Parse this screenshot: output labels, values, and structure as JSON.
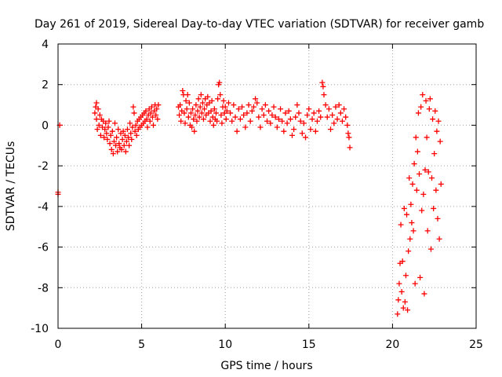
{
  "chart_data": {
    "type": "scatter",
    "title": "Day 261 of 2019, Sidereal Day-to-day VTEC variation (SDTVAR) for receiver gamb",
    "xlabel": "GPS time / hours",
    "ylabel": "SDTVAR / TECUs",
    "xlim": [
      0,
      25
    ],
    "ylim": [
      -10,
      4
    ],
    "xticks": [
      0,
      5,
      10,
      15,
      20,
      25
    ],
    "yticks": [
      -10,
      -8,
      -6,
      -4,
      -2,
      0,
      2,
      4
    ],
    "xtick_labels": [
      "0",
      "5",
      "10",
      "15",
      "20",
      "25"
    ],
    "ytick_labels": [
      "-10",
      "-8",
      "-6",
      "-4",
      "-2",
      "0",
      "2",
      "4"
    ],
    "grid": true,
    "marker": "plus",
    "series": [
      {
        "name": "SDTVAR",
        "color": "#ff0000",
        "points": [
          [
            0.0,
            -3.3
          ],
          [
            0.0,
            -3.4
          ],
          [
            0.1,
            0.0
          ],
          [
            2.2,
            0.6
          ],
          [
            2.25,
            0.9
          ],
          [
            2.3,
            1.1
          ],
          [
            2.3,
            0.3
          ],
          [
            2.35,
            -0.2
          ],
          [
            2.4,
            0.8
          ],
          [
            2.45,
            0.0
          ],
          [
            2.5,
            0.5
          ],
          [
            2.55,
            -0.5
          ],
          [
            2.6,
            0.3
          ],
          [
            2.65,
            -0.1
          ],
          [
            2.7,
            0.2
          ],
          [
            2.75,
            -0.6
          ],
          [
            2.8,
            -0.2
          ],
          [
            2.85,
            0.1
          ],
          [
            2.9,
            -0.4
          ],
          [
            2.95,
            -0.7
          ],
          [
            3.0,
            -0.1
          ],
          [
            3.05,
            0.2
          ],
          [
            3.1,
            -0.9
          ],
          [
            3.15,
            -0.5
          ],
          [
            3.2,
            -1.2
          ],
          [
            3.25,
            -0.3
          ],
          [
            3.3,
            -1.4
          ],
          [
            3.35,
            -0.8
          ],
          [
            3.4,
            0.1
          ],
          [
            3.45,
            -1.0
          ],
          [
            3.5,
            -0.6
          ],
          [
            3.55,
            -1.3
          ],
          [
            3.6,
            -0.2
          ],
          [
            3.65,
            -0.9
          ],
          [
            3.7,
            -1.1
          ],
          [
            3.75,
            -0.4
          ],
          [
            3.8,
            -1.2
          ],
          [
            3.85,
            -0.7
          ],
          [
            3.9,
            -0.3
          ],
          [
            3.95,
            -1.0
          ],
          [
            4.0,
            -0.5
          ],
          [
            4.05,
            -1.3
          ],
          [
            4.1,
            -0.8
          ],
          [
            4.15,
            -0.2
          ],
          [
            4.2,
            -0.6
          ],
          [
            4.25,
            -1.0
          ],
          [
            4.3,
            0.1
          ],
          [
            4.35,
            -0.4
          ],
          [
            4.4,
            -0.7
          ],
          [
            4.45,
            -0.1
          ],
          [
            4.5,
            0.9
          ],
          [
            4.55,
            0.6
          ],
          [
            4.6,
            -0.3
          ],
          [
            4.65,
            0.0
          ],
          [
            4.7,
            -0.5
          ],
          [
            4.75,
            0.2
          ],
          [
            4.8,
            -0.2
          ],
          [
            4.85,
            0.3
          ],
          [
            4.9,
            -0.1
          ],
          [
            4.95,
            0.4
          ],
          [
            5.0,
            0.0
          ],
          [
            5.05,
            0.5
          ],
          [
            5.1,
            0.1
          ],
          [
            5.15,
            0.6
          ],
          [
            5.2,
            0.2
          ],
          [
            5.25,
            0.7
          ],
          [
            5.3,
            0.3
          ],
          [
            5.35,
            -0.1
          ],
          [
            5.4,
            0.5
          ],
          [
            5.45,
            0.8
          ],
          [
            5.5,
            0.2
          ],
          [
            5.55,
            0.6
          ],
          [
            5.6,
            0.9
          ],
          [
            5.65,
            0.4
          ],
          [
            5.7,
            0.0
          ],
          [
            5.75,
            0.7
          ],
          [
            5.8,
            1.0
          ],
          [
            5.85,
            0.5
          ],
          [
            5.9,
            0.8
          ],
          [
            5.95,
            0.3
          ],
          [
            6.0,
            1.0
          ],
          [
            7.2,
            0.9
          ],
          [
            7.25,
            0.5
          ],
          [
            7.3,
            1.0
          ],
          [
            7.35,
            0.2
          ],
          [
            7.4,
            0.7
          ],
          [
            7.45,
            1.7
          ],
          [
            7.5,
            1.5
          ],
          [
            7.55,
            0.6
          ],
          [
            7.6,
            0.1
          ],
          [
            7.65,
            1.2
          ],
          [
            7.7,
            0.8
          ],
          [
            7.75,
            1.5
          ],
          [
            7.8,
            0.4
          ],
          [
            7.85,
            1.1
          ],
          [
            7.9,
            0.0
          ],
          [
            7.95,
            0.6
          ],
          [
            8.0,
            -0.1
          ],
          [
            8.05,
            0.8
          ],
          [
            8.1,
            0.3
          ],
          [
            8.15,
            -0.3
          ],
          [
            8.2,
            0.5
          ],
          [
            8.25,
            1.0
          ],
          [
            8.3,
            0.2
          ],
          [
            8.35,
            0.7
          ],
          [
            8.4,
            1.3
          ],
          [
            8.45,
            0.4
          ],
          [
            8.5,
            0.9
          ],
          [
            8.55,
            1.5
          ],
          [
            8.6,
            0.6
          ],
          [
            8.65,
            1.1
          ],
          [
            8.7,
            0.3
          ],
          [
            8.75,
            0.8
          ],
          [
            8.8,
            1.3
          ],
          [
            8.85,
            0.5
          ],
          [
            8.9,
            1.0
          ],
          [
            8.95,
            1.4
          ],
          [
            9.0,
            0.6
          ],
          [
            9.05,
            1.1
          ],
          [
            9.1,
            0.2
          ],
          [
            9.15,
            0.7
          ],
          [
            9.2,
            1.2
          ],
          [
            9.25,
            0.4
          ],
          [
            9.3,
            0.0
          ],
          [
            9.35,
            0.8
          ],
          [
            9.4,
            0.3
          ],
          [
            9.45,
            0.6
          ],
          [
            9.5,
            0.2
          ],
          [
            9.55,
            1.3
          ],
          [
            9.6,
            2.0
          ],
          [
            9.65,
            2.1
          ],
          [
            9.7,
            1.5
          ],
          [
            9.75,
            0.5
          ],
          [
            9.8,
            0.1
          ],
          [
            9.85,
            0.9
          ],
          [
            9.9,
            1.2
          ],
          [
            9.95,
            0.6
          ],
          [
            10.0,
            0.9
          ],
          [
            10.05,
            0.3
          ],
          [
            10.1,
            0.7
          ],
          [
            10.2,
            1.1
          ],
          [
            10.3,
            0.6
          ],
          [
            10.4,
            0.2
          ],
          [
            10.5,
            1.0
          ],
          [
            10.6,
            0.4
          ],
          [
            10.7,
            -0.3
          ],
          [
            10.8,
            0.8
          ],
          [
            10.9,
            0.3
          ],
          [
            11.0,
            0.9
          ],
          [
            11.1,
            0.5
          ],
          [
            11.2,
            -0.1
          ],
          [
            11.3,
            0.6
          ],
          [
            11.4,
            1.0
          ],
          [
            11.5,
            0.2
          ],
          [
            11.6,
            0.7
          ],
          [
            11.7,
            0.9
          ],
          [
            11.8,
            1.3
          ],
          [
            11.9,
            1.1
          ],
          [
            12.0,
            0.4
          ],
          [
            12.1,
            -0.1
          ],
          [
            12.2,
            0.8
          ],
          [
            12.3,
            0.5
          ],
          [
            12.4,
            1.0
          ],
          [
            12.5,
            0.2
          ],
          [
            12.6,
            0.7
          ],
          [
            12.7,
            0.1
          ],
          [
            12.8,
            0.5
          ],
          [
            12.9,
            0.9
          ],
          [
            13.0,
            0.4
          ],
          [
            13.1,
            -0.1
          ],
          [
            13.2,
            0.3
          ],
          [
            13.3,
            0.8
          ],
          [
            13.4,
            0.2
          ],
          [
            13.5,
            -0.3
          ],
          [
            13.6,
            0.6
          ],
          [
            13.7,
            0.1
          ],
          [
            13.8,
            0.7
          ],
          [
            13.9,
            0.3
          ],
          [
            14.0,
            -0.5
          ],
          [
            14.1,
            -0.2
          ],
          [
            14.2,
            0.4
          ],
          [
            14.3,
            1.0
          ],
          [
            14.4,
            0.6
          ],
          [
            14.5,
            0.2
          ],
          [
            14.6,
            -0.4
          ],
          [
            14.7,
            0.1
          ],
          [
            14.8,
            -0.6
          ],
          [
            14.9,
            0.5
          ],
          [
            15.0,
            0.8
          ],
          [
            15.1,
            -0.2
          ],
          [
            15.2,
            0.3
          ],
          [
            15.3,
            0.6
          ],
          [
            15.4,
            -0.3
          ],
          [
            15.5,
            0.2
          ],
          [
            15.6,
            0.7
          ],
          [
            15.7,
            0.4
          ],
          [
            15.8,
            2.1
          ],
          [
            15.85,
            1.9
          ],
          [
            15.9,
            1.5
          ],
          [
            16.0,
            1.0
          ],
          [
            16.1,
            0.4
          ],
          [
            16.2,
            0.8
          ],
          [
            16.3,
            -0.2
          ],
          [
            16.4,
            0.5
          ],
          [
            16.5,
            0.1
          ],
          [
            16.6,
            0.9
          ],
          [
            16.7,
            0.3
          ],
          [
            16.8,
            1.0
          ],
          [
            16.9,
            0.6
          ],
          [
            17.0,
            0.2
          ],
          [
            17.1,
            0.8
          ],
          [
            17.2,
            0.4
          ],
          [
            17.3,
            0.0
          ],
          [
            17.35,
            -0.4
          ],
          [
            17.4,
            -0.6
          ],
          [
            17.45,
            -1.1
          ],
          [
            20.3,
            -9.3
          ],
          [
            20.35,
            -8.6
          ],
          [
            20.4,
            -7.8
          ],
          [
            20.45,
            -6.8
          ],
          [
            20.5,
            -4.9
          ],
          [
            20.55,
            -8.2
          ],
          [
            20.6,
            -6.7
          ],
          [
            20.65,
            -9.0
          ],
          [
            20.7,
            -4.1
          ],
          [
            20.75,
            -8.7
          ],
          [
            20.8,
            -7.4
          ],
          [
            20.85,
            -4.4
          ],
          [
            20.9,
            -9.1
          ],
          [
            20.95,
            -6.2
          ],
          [
            21.0,
            -2.6
          ],
          [
            21.05,
            -5.6
          ],
          [
            21.1,
            -3.9
          ],
          [
            21.15,
            -4.8
          ],
          [
            21.2,
            -2.9
          ],
          [
            21.25,
            -5.2
          ],
          [
            21.3,
            -1.9
          ],
          [
            21.35,
            -7.8
          ],
          [
            21.4,
            -0.6
          ],
          [
            21.45,
            -3.2
          ],
          [
            21.5,
            -1.3
          ],
          [
            21.55,
            0.6
          ],
          [
            21.6,
            -2.4
          ],
          [
            21.65,
            -7.5
          ],
          [
            21.7,
            0.9
          ],
          [
            21.75,
            -4.2
          ],
          [
            21.8,
            1.5
          ],
          [
            21.85,
            -3.4
          ],
          [
            21.9,
            -8.3
          ],
          [
            21.95,
            -2.2
          ],
          [
            22.0,
            1.2
          ],
          [
            22.05,
            -0.6
          ],
          [
            22.1,
            -5.2
          ],
          [
            22.15,
            -2.3
          ],
          [
            22.2,
            0.8
          ],
          [
            22.25,
            1.3
          ],
          [
            22.3,
            -6.1
          ],
          [
            22.35,
            -2.6
          ],
          [
            22.4,
            0.3
          ],
          [
            22.45,
            -4.1
          ],
          [
            22.5,
            -1.4
          ],
          [
            22.55,
            0.7
          ],
          [
            22.6,
            -3.2
          ],
          [
            22.65,
            -0.3
          ],
          [
            22.7,
            -4.6
          ],
          [
            22.75,
            0.2
          ],
          [
            22.8,
            -5.6
          ],
          [
            22.85,
            -0.8
          ],
          [
            22.9,
            -2.9
          ]
        ]
      }
    ]
  }
}
